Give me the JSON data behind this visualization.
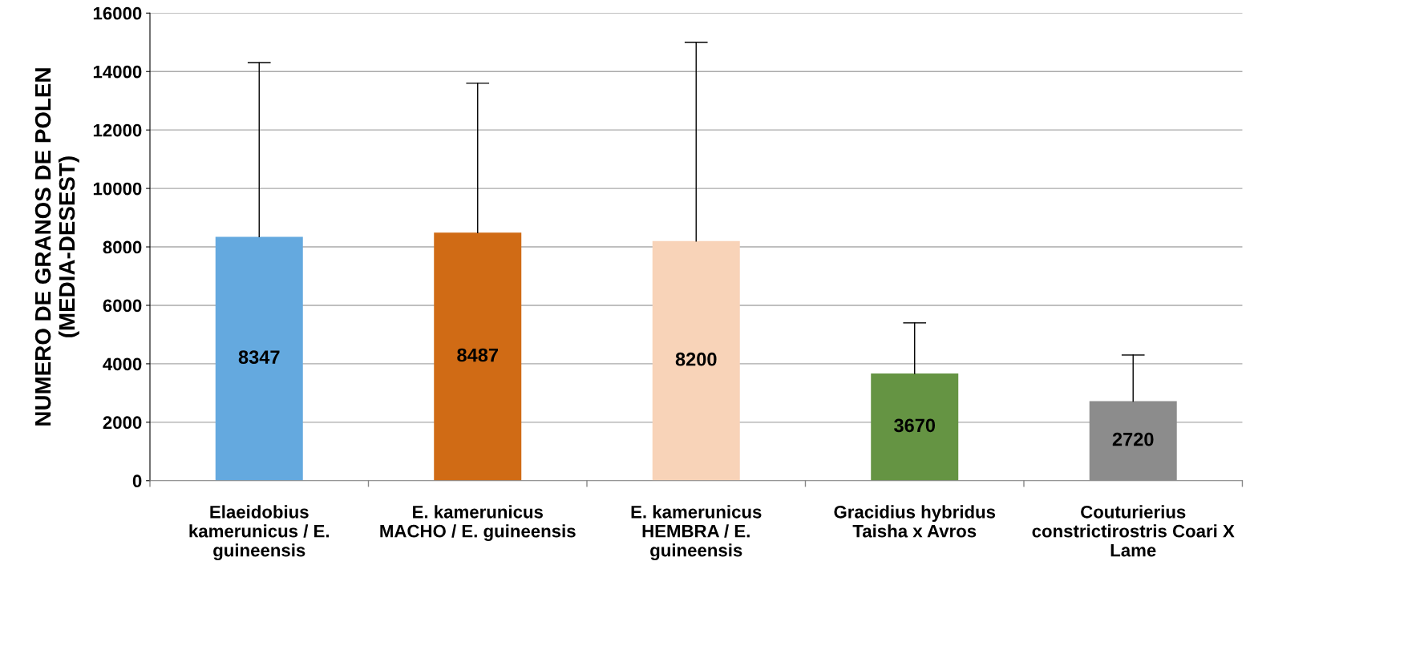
{
  "chart_data": {
    "type": "bar",
    "ylabel": "NUMERO DE GRANOS DE POLEN\n(MEDIA-DESEST)",
    "categories": [
      "Elaeidobius\nkamerunicus / E.\nguineensis",
      "E. kamerunicus\nMACHO / E. guineensis",
      "E. kamerunicus\nHEMBRA / E.\nguineensis",
      "Gracidius hybridus\nTaisha x Avros",
      "Couturierius\nconstrictirostris Coari X\nLame"
    ],
    "values": [
      8347,
      8487,
      8200,
      3670,
      2720
    ],
    "colors": [
      "#64a9df",
      "#d06b15",
      "#f8d3b8",
      "#659443",
      "#8c8c8c"
    ],
    "errors": [
      [
        8347,
        14300
      ],
      [
        8487,
        13600
      ],
      [
        8200,
        15000
      ],
      [
        3670,
        5400
      ],
      [
        2720,
        4300
      ]
    ],
    "data_labels": true,
    "ylim": [
      0,
      16000
    ],
    "yticks": [
      0,
      2000,
      4000,
      6000,
      8000,
      10000,
      12000,
      14000,
      16000
    ],
    "grid": "y",
    "legend": false
  }
}
